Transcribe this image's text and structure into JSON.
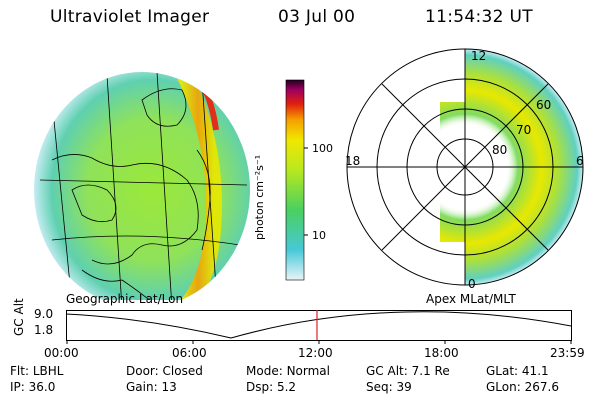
{
  "header": {
    "title": "Ultraviolet Imager",
    "date": "03 Jul 00",
    "time": "11:54:32 UT"
  },
  "colorbar": {
    "label": "photon cm⁻²s⁻¹",
    "ticks": [
      "100",
      "10"
    ]
  },
  "polar_plot": {
    "hour_labels": [
      "12",
      "18",
      "6",
      "0"
    ],
    "lat_labels": [
      "60",
      "70",
      "80"
    ]
  },
  "captions": {
    "left": "Geographic Lat/Lon",
    "right": "Apex  MLat/MLT"
  },
  "timeline": {
    "y_label": "GC Alt",
    "y_ticks": [
      "9.0",
      "1.8"
    ],
    "x_ticks": [
      "00:00",
      "06:00",
      "12:00",
      "18:00",
      "23:59"
    ],
    "marker_time": "11:54",
    "marker_fraction": 0.496,
    "line_color": "#000000",
    "marker_color": "#dd2222"
  },
  "footer": {
    "row1": [
      {
        "label": "Flt:",
        "value": "LBHL"
      },
      {
        "label": "Door:",
        "value": "Closed"
      },
      {
        "label": "Mode:",
        "value": "Normal"
      },
      {
        "label": "GC Alt:",
        "value": "7.1 Re"
      },
      {
        "label": "GLat:",
        "value": "41.1"
      }
    ],
    "row2": [
      {
        "label": "IP:",
        "value": "36.0"
      },
      {
        "label": "Gain:",
        "value": "13"
      },
      {
        "label": "Dsp:",
        "value": "5.2"
      },
      {
        "label": "Seq:",
        "value": "39"
      },
      {
        "label": "GLon:",
        "value": "267.6"
      }
    ]
  }
}
